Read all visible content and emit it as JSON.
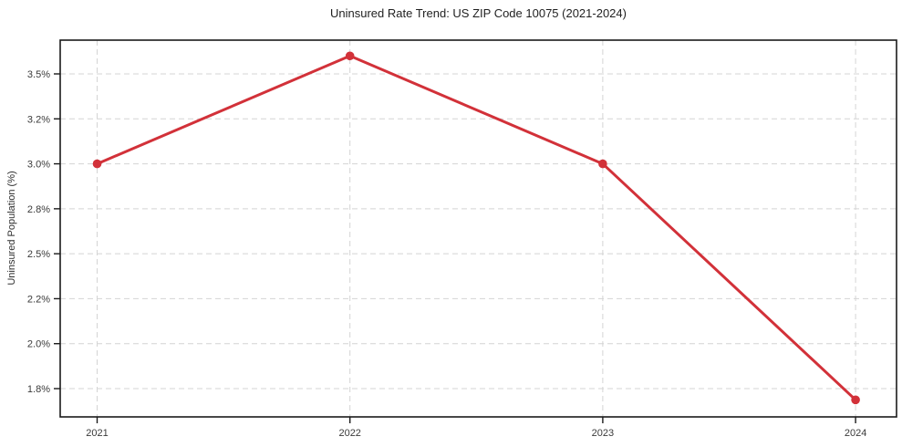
{
  "chart_data": {
    "type": "line",
    "title": "Uninsured Rate Trend: US ZIP Code 10075 (2021-2024)",
    "xlabel": "",
    "ylabel": "Uninsured Population (%)",
    "x": [
      2021,
      2022,
      2023,
      2024
    ],
    "x_tick_labels": [
      "2021",
      "2022",
      "2023",
      "2024"
    ],
    "values": [
      3.0,
      3.62,
      3.0,
      1.75
    ],
    "y_ticks": {
      "labels": [
        "3.5%",
        "3.2%",
        "3.0%",
        "2.8%",
        "2.5%",
        "2.2%",
        "2.0%",
        "1.8%"
      ],
      "values": [
        3.5,
        3.2,
        3.0,
        2.8,
        2.5,
        2.2,
        2.0,
        1.8
      ]
    },
    "ylim": [
      1.67,
      3.73
    ],
    "grid": "dashed",
    "legend": "none",
    "marker": "circle",
    "colors": {
      "line": "#d23139",
      "marker": "#d23139",
      "grid": "#d4d4d4",
      "axis": "#1a1a1a",
      "tick_text": "#3a3a3a",
      "title_text": "#1f1f1f",
      "background": "#ffffff"
    }
  }
}
